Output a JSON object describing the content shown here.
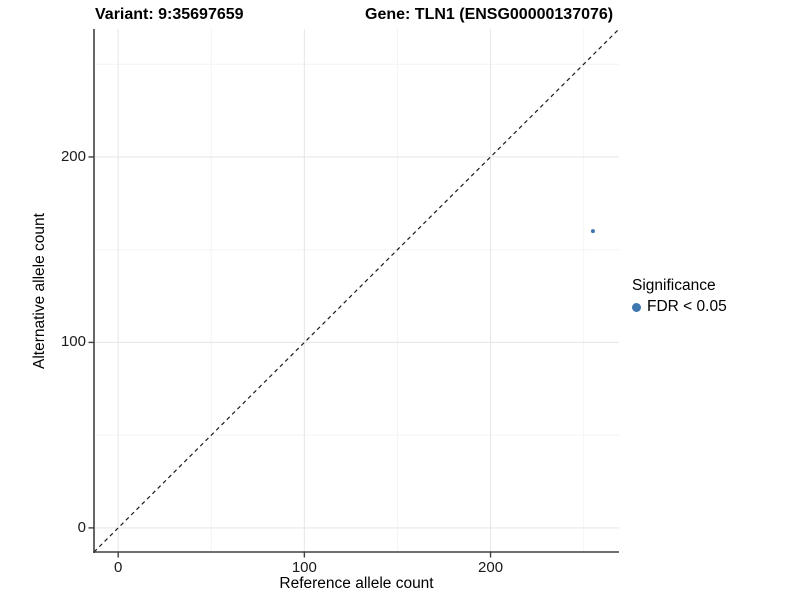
{
  "chart_data": {
    "type": "scatter",
    "title_left": "Variant: 9:35697659",
    "title_right": "Gene: TLN1 (ENSG00000137076)",
    "xlabel": "Reference allele count",
    "ylabel": "Alternative allele count",
    "x_ticks": [
      0,
      100,
      200
    ],
    "y_ticks": [
      0,
      100,
      200
    ],
    "x_minor_ticks": [
      50,
      150,
      250
    ],
    "y_minor_ticks": [
      50,
      150,
      250
    ],
    "xlim": [
      -13,
      269
    ],
    "ylim": [
      -13,
      269
    ],
    "grid": "major+minor",
    "aspect": "fixed 1:1",
    "identity_line": {
      "slope": 1,
      "intercept": 0,
      "style": "dashed",
      "color": "#1a1a1a"
    },
    "series": [
      {
        "name": "FDR < 0.05",
        "color": "#3E76AF",
        "points": [
          {
            "x": 255,
            "y": 160
          }
        ],
        "point_radius_px": 2
      }
    ],
    "legend": {
      "position": "right",
      "title": "Significance",
      "entries": [
        {
          "label": "FDR < 0.05",
          "color": "#3E76AF"
        }
      ]
    },
    "colors": {
      "background": "#ffffff",
      "grid_major": "#E8E8E8",
      "grid_minor": "#F4F4F4",
      "axis_line": "#404040",
      "tick_mark": "#404040",
      "point": "#3E76AF"
    }
  }
}
